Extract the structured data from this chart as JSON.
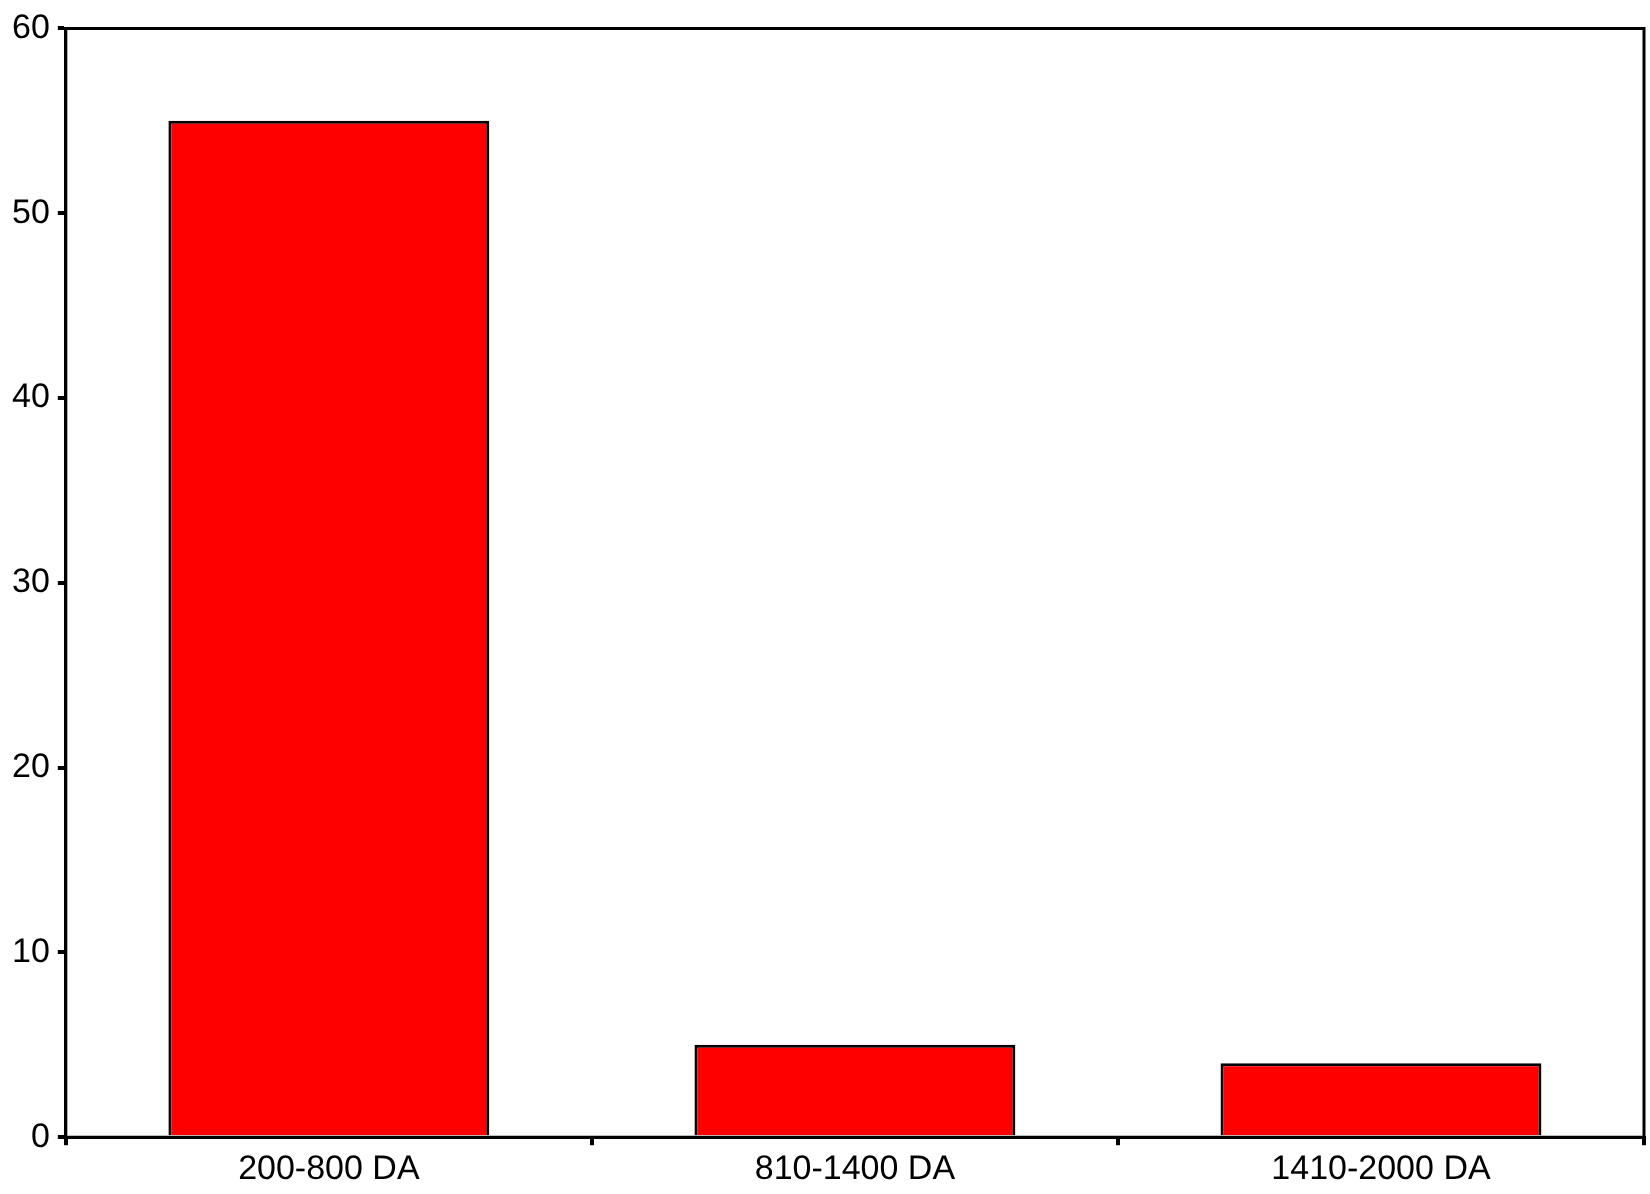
{
  "chart_data": {
    "type": "bar",
    "categories": [
      "200-800 DA",
      "810-1400 DA",
      "1410-2000 DA"
    ],
    "values": [
      55,
      5,
      4
    ],
    "color": "#ff0000",
    "ylim": [
      0,
      60
    ],
    "yticks": [
      0,
      10,
      20,
      30,
      40,
      50,
      60
    ],
    "grid": false,
    "legend": false
  }
}
